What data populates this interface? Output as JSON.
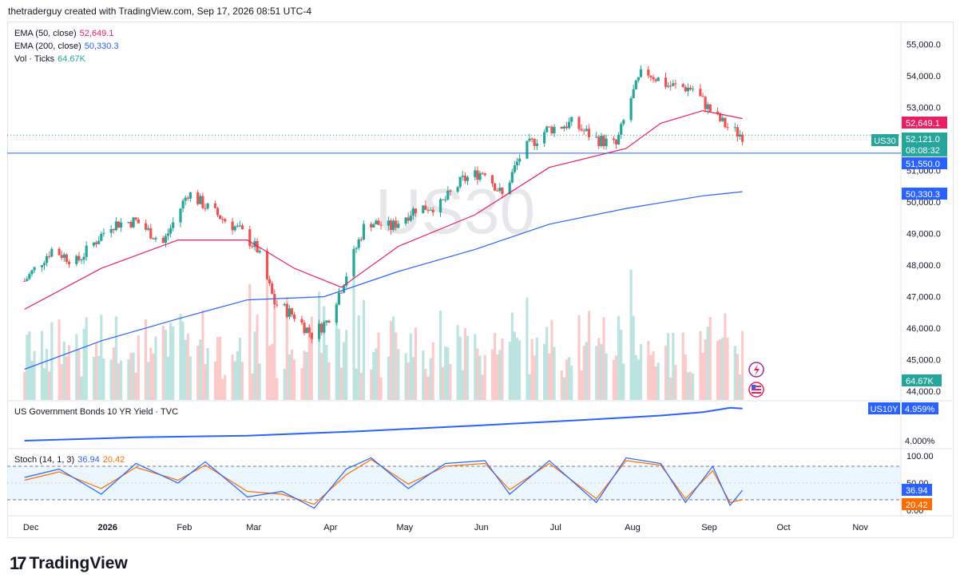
{
  "header": {
    "attribution": "thetraderguy created with TradingView.com, Sep 17, 2026 08:51 UTC-4"
  },
  "watermark": "US30",
  "legend": {
    "ema50": {
      "label": "EMA (50, close)",
      "value": "52,649.1",
      "color": "#e91e63"
    },
    "ema200": {
      "label": "EMA (200, close)",
      "value": "50,330.3",
      "color": "#2962ff"
    },
    "vol": {
      "label": "Vol · Ticks",
      "value": "64.67K",
      "color": "#26a69a"
    },
    "bond": {
      "label": "US Government Bonds 10 YR Yield · TVC"
    },
    "stoch": {
      "label": "Stoch (14, 1, 3)",
      "k": "36.94",
      "d": "20.42",
      "k_color": "#2962ff",
      "d_color": "#ff6d00"
    }
  },
  "price_labels": {
    "symbol": "US30",
    "last": "52,121.0",
    "countdown": "08:08:32",
    "ema50": "52,649.1",
    "hline": "51,550.0",
    "ema200": "50,330.3",
    "volume": "64.67K",
    "bond_symbol": "US10Y",
    "bond_value": "4.959%",
    "bond_axis": "4.000%",
    "stoch_k": "36.94",
    "stoch_d": "20.42"
  },
  "time_axis": [
    "Dec",
    "2026",
    "Feb",
    "Mar",
    "Apr",
    "May",
    "Jun",
    "Jul",
    "Aug",
    "Sep",
    "Oct",
    "Nov"
  ],
  "stoch_axis": [
    "100.00",
    "50.00",
    "0.00"
  ],
  "branding": {
    "name": "TradingView"
  },
  "chart_data": {
    "type": "candlestick",
    "symbol": "US30",
    "y_axis_ticks": [
      55000,
      54000,
      53000,
      52000,
      51000,
      50000,
      49000,
      48000,
      47000,
      46000,
      45000,
      44000
    ],
    "ylim": [
      43700,
      55700
    ],
    "horizontal_line": 51550.0,
    "last_price": 52121.0,
    "keypoints": [
      {
        "date": "2025-12-01",
        "close": 47500
      },
      {
        "date": "2025-12-12",
        "close": 48500
      },
      {
        "date": "2025-12-22",
        "close": 48100
      },
      {
        "date": "2026-01-05",
        "close": 49300
      },
      {
        "date": "2026-01-15",
        "close": 49400
      },
      {
        "date": "2026-01-26",
        "close": 48700
      },
      {
        "date": "2026-02-05",
        "close": 50300
      },
      {
        "date": "2026-02-15",
        "close": 49700
      },
      {
        "date": "2026-02-26",
        "close": 49100
      },
      {
        "date": "2026-03-05",
        "close": 48500
      },
      {
        "date": "2026-03-12",
        "close": 46800
      },
      {
        "date": "2026-03-20",
        "close": 46400
      },
      {
        "date": "2026-03-27",
        "close": 45800
      },
      {
        "date": "2026-04-02",
        "close": 46200
      },
      {
        "date": "2026-04-08",
        "close": 47300
      },
      {
        "date": "2026-04-18",
        "close": 49400
      },
      {
        "date": "2026-04-28",
        "close": 49200
      },
      {
        "date": "2026-05-08",
        "close": 49800
      },
      {
        "date": "2026-05-18",
        "close": 49900
      },
      {
        "date": "2026-05-27",
        "close": 50700
      },
      {
        "date": "2026-06-05",
        "close": 51000
      },
      {
        "date": "2026-06-12",
        "close": 50200
      },
      {
        "date": "2026-06-20",
        "close": 51600
      },
      {
        "date": "2026-06-30",
        "close": 52300
      },
      {
        "date": "2026-07-10",
        "close": 52500
      },
      {
        "date": "2026-07-20",
        "close": 52000
      },
      {
        "date": "2026-07-28",
        "close": 51800
      },
      {
        "date": "2026-08-03",
        "close": 53300
      },
      {
        "date": "2026-08-08",
        "close": 54200
      },
      {
        "date": "2026-08-18",
        "close": 53700
      },
      {
        "date": "2026-08-28",
        "close": 53600
      },
      {
        "date": "2026-09-05",
        "close": 52800
      },
      {
        "date": "2026-09-12",
        "close": 52300
      },
      {
        "date": "2026-09-17",
        "close": 52121
      }
    ],
    "ema50": [
      {
        "date": "2025-12-01",
        "value": 46600
      },
      {
        "date": "2026-01-01",
        "value": 47900
      },
      {
        "date": "2026-02-01",
        "value": 48800
      },
      {
        "date": "2026-03-01",
        "value": 48800
      },
      {
        "date": "2026-03-20",
        "value": 47900
      },
      {
        "date": "2026-04-08",
        "value": 47300
      },
      {
        "date": "2026-05-01",
        "value": 48600
      },
      {
        "date": "2026-06-01",
        "value": 49600
      },
      {
        "date": "2026-07-01",
        "value": 51100
      },
      {
        "date": "2026-08-01",
        "value": 51700
      },
      {
        "date": "2026-08-15",
        "value": 52500
      },
      {
        "date": "2026-09-01",
        "value": 52900
      },
      {
        "date": "2026-09-17",
        "value": 52649.1
      }
    ],
    "ema200": [
      {
        "date": "2025-12-01",
        "value": 44700
      },
      {
        "date": "2026-01-01",
        "value": 45600
      },
      {
        "date": "2026-02-01",
        "value": 46300
      },
      {
        "date": "2026-03-01",
        "value": 46900
      },
      {
        "date": "2026-04-01",
        "value": 47000
      },
      {
        "date": "2026-05-01",
        "value": 47800
      },
      {
        "date": "2026-06-01",
        "value": 48500
      },
      {
        "date": "2026-07-01",
        "value": 49300
      },
      {
        "date": "2026-08-01",
        "value": 49800
      },
      {
        "date": "2026-09-01",
        "value": 50200
      },
      {
        "date": "2026-09-17",
        "value": 50330.3
      }
    ],
    "us10y": [
      {
        "date": "2025-12-01",
        "value": 4.0
      },
      {
        "date": "2026-01-15",
        "value": 4.1
      },
      {
        "date": "2026-03-01",
        "value": 4.15
      },
      {
        "date": "2026-04-15",
        "value": 4.28
      },
      {
        "date": "2026-06-01",
        "value": 4.45
      },
      {
        "date": "2026-07-15",
        "value": 4.62
      },
      {
        "date": "2026-08-15",
        "value": 4.75
      },
      {
        "date": "2026-09-01",
        "value": 4.85
      },
      {
        "date": "2026-09-12",
        "value": 4.98
      },
      {
        "date": "2026-09-17",
        "value": 4.959
      }
    ],
    "stochastic": {
      "k_last": 36.94,
      "d_last": 20.42,
      "bands": [
        20,
        80
      ],
      "k": [
        {
          "date": "2025-12-01",
          "value": 60
        },
        {
          "date": "2025-12-15",
          "value": 75
        },
        {
          "date": "2026-01-01",
          "value": 30
        },
        {
          "date": "2026-01-15",
          "value": 85
        },
        {
          "date": "2026-02-01",
          "value": 50
        },
        {
          "date": "2026-02-12",
          "value": 88
        },
        {
          "date": "2026-03-01",
          "value": 25
        },
        {
          "date": "2026-03-15",
          "value": 35
        },
        {
          "date": "2026-03-28",
          "value": 5
        },
        {
          "date": "2026-04-10",
          "value": 75
        },
        {
          "date": "2026-04-20",
          "value": 95
        },
        {
          "date": "2026-05-05",
          "value": 40
        },
        {
          "date": "2026-05-20",
          "value": 85
        },
        {
          "date": "2026-06-05",
          "value": 90
        },
        {
          "date": "2026-06-15",
          "value": 30
        },
        {
          "date": "2026-07-01",
          "value": 90
        },
        {
          "date": "2026-07-20",
          "value": 15
        },
        {
          "date": "2026-08-01",
          "value": 95
        },
        {
          "date": "2026-08-15",
          "value": 85
        },
        {
          "date": "2026-08-25",
          "value": 15
        },
        {
          "date": "2026-09-05",
          "value": 80
        },
        {
          "date": "2026-09-12",
          "value": 10
        },
        {
          "date": "2026-09-17",
          "value": 36.94
        }
      ],
      "d": [
        {
          "date": "2025-12-01",
          "value": 55
        },
        {
          "date": "2025-12-15",
          "value": 70
        },
        {
          "date": "2026-01-01",
          "value": 40
        },
        {
          "date": "2026-01-15",
          "value": 78
        },
        {
          "date": "2026-02-01",
          "value": 55
        },
        {
          "date": "2026-02-12",
          "value": 82
        },
        {
          "date": "2026-03-01",
          "value": 35
        },
        {
          "date": "2026-03-15",
          "value": 30
        },
        {
          "date": "2026-03-28",
          "value": 12
        },
        {
          "date": "2026-04-10",
          "value": 65
        },
        {
          "date": "2026-04-20",
          "value": 92
        },
        {
          "date": "2026-05-05",
          "value": 48
        },
        {
          "date": "2026-05-20",
          "value": 80
        },
        {
          "date": "2026-06-05",
          "value": 85
        },
        {
          "date": "2026-06-15",
          "value": 38
        },
        {
          "date": "2026-07-01",
          "value": 85
        },
        {
          "date": "2026-07-20",
          "value": 22
        },
        {
          "date": "2026-08-01",
          "value": 90
        },
        {
          "date": "2026-08-15",
          "value": 82
        },
        {
          "date": "2026-08-25",
          "value": 22
        },
        {
          "date": "2026-09-05",
          "value": 72
        },
        {
          "date": "2026-09-12",
          "value": 15
        },
        {
          "date": "2026-09-17",
          "value": 20.42
        }
      ]
    }
  }
}
